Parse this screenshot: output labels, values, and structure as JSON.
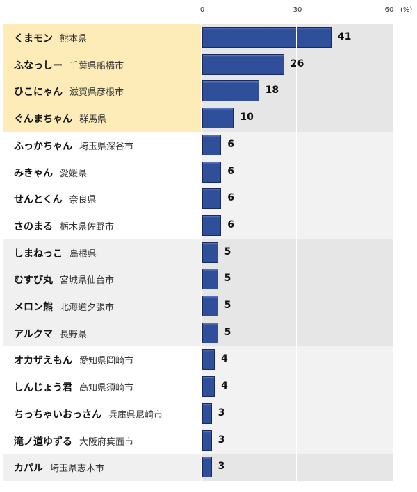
{
  "chart_data": {
    "type": "bar",
    "orientation": "horizontal",
    "xlabel": "(%)",
    "xlim": [
      0,
      60
    ],
    "xticks": [
      "0",
      "30",
      "60"
    ],
    "highlight_top": 4,
    "categories": [
      {
        "name": "くまモン",
        "place": "熊本県"
      },
      {
        "name": "ふなっしー",
        "place": "千葉県船橋市"
      },
      {
        "name": "ひこにゃん",
        "place": "滋賀県彦根市"
      },
      {
        "name": "ぐんまちゃん",
        "place": "群馬県"
      },
      {
        "name": "ふっかちゃん",
        "place": "埼玉県深谷市"
      },
      {
        "name": "みきゃん",
        "place": "愛媛県"
      },
      {
        "name": "せんとくん",
        "place": "奈良県"
      },
      {
        "name": "さのまる",
        "place": "栃木県佐野市"
      },
      {
        "name": "しまねっこ",
        "place": "島根県"
      },
      {
        "name": "むすび丸",
        "place": "宮城県仙台市"
      },
      {
        "name": "メロン熊",
        "place": "北海道夕張市"
      },
      {
        "name": "アルクマ",
        "place": "長野県"
      },
      {
        "name": "オカザえもん",
        "place": "愛知県岡崎市"
      },
      {
        "name": "しんじょう君",
        "place": "高知県須崎市"
      },
      {
        "name": "ちっちゃいおっさん",
        "place": "兵庫県尼崎市"
      },
      {
        "name": "滝ノ道ゆずる",
        "place": "大阪府箕面市"
      },
      {
        "name": "カパル",
        "place": "埼玉県志木市"
      }
    ],
    "values": [
      41,
      26,
      18,
      10,
      6,
      6,
      6,
      6,
      5,
      5,
      5,
      5,
      4,
      4,
      3,
      3,
      3
    ],
    "colors": {
      "bar": "#2f4f9a",
      "highlight": "#fdebb8"
    }
  }
}
